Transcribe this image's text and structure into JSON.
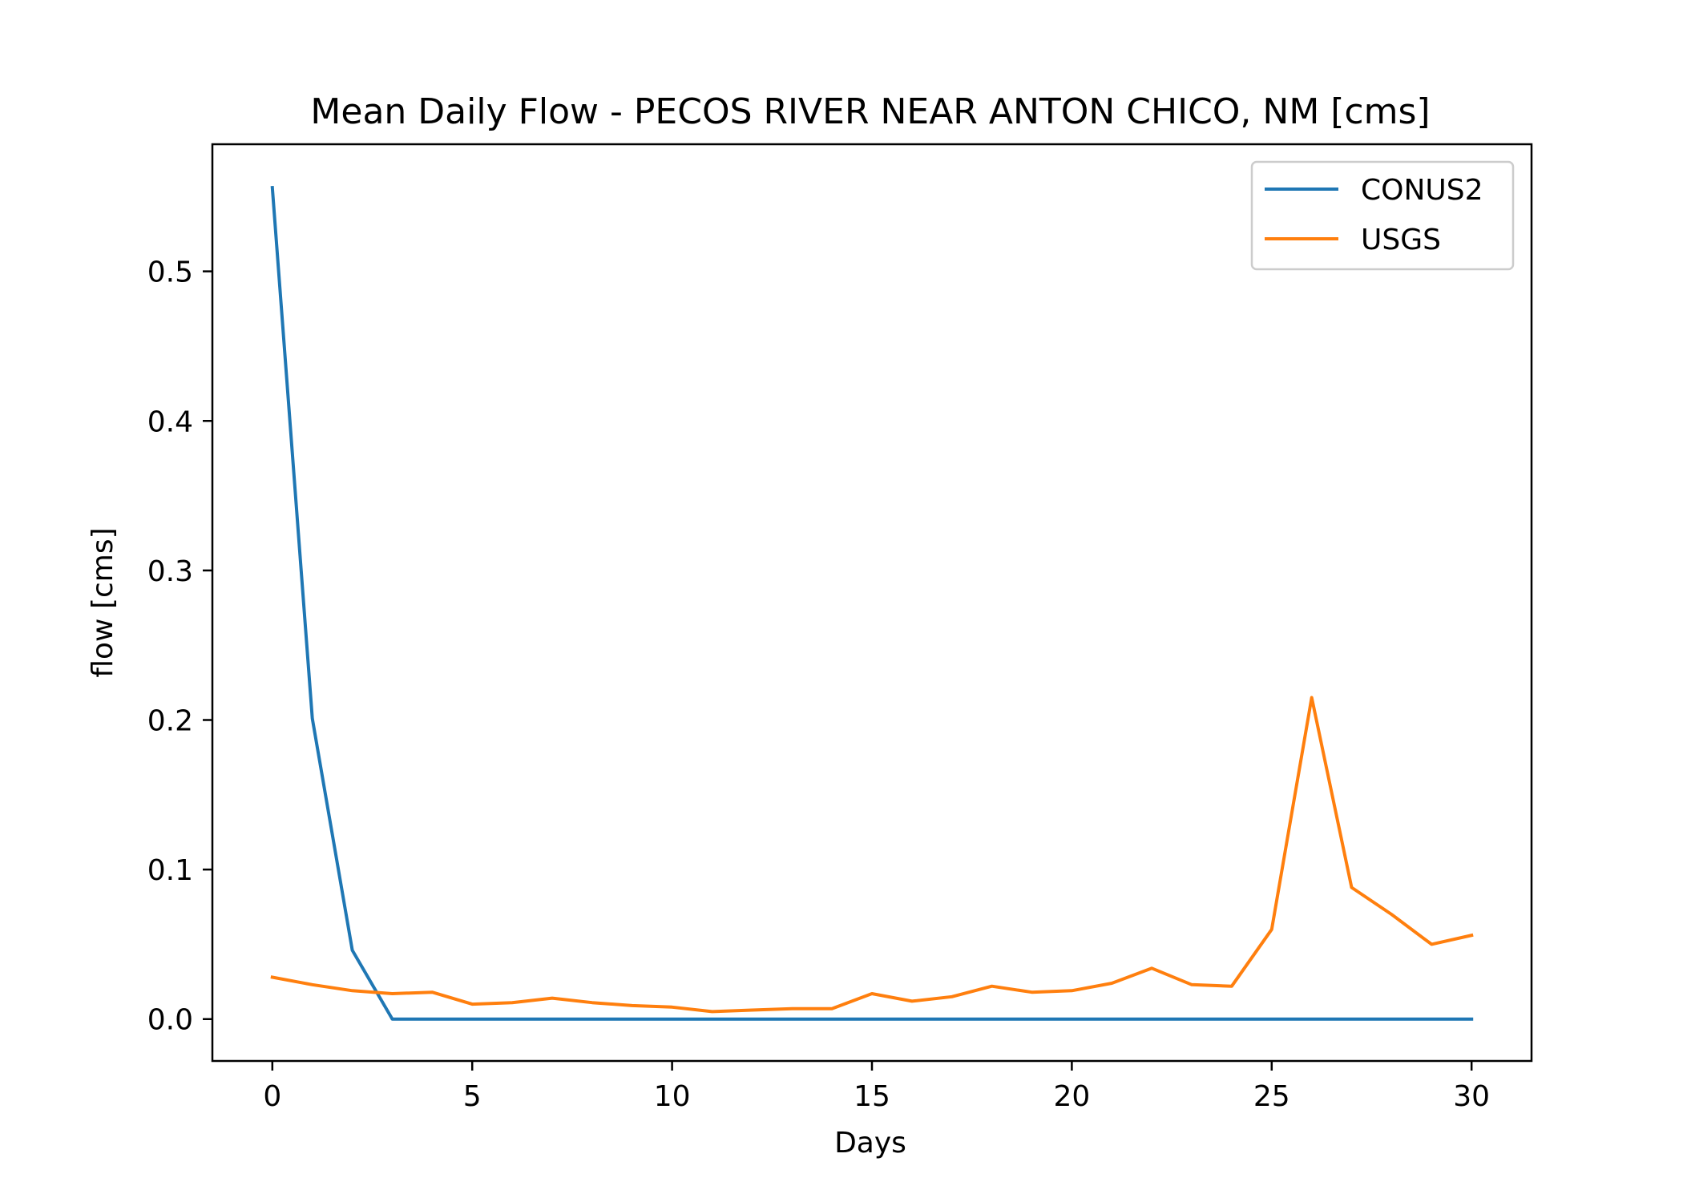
{
  "chart_data": {
    "type": "line",
    "title": "Mean Daily Flow - PECOS RIVER NEAR ANTON CHICO, NM [cms]",
    "xlabel": "Days",
    "ylabel": "flow [cms]",
    "xlim": [
      -1.5,
      31.5
    ],
    "ylim": [
      -0.028,
      0.585
    ],
    "xticks": [
      0,
      5,
      10,
      15,
      20,
      25,
      30
    ],
    "xtick_labels": [
      "0",
      "5",
      "10",
      "15",
      "20",
      "25",
      "30"
    ],
    "yticks": [
      0.0,
      0.1,
      0.2,
      0.3,
      0.4,
      0.5
    ],
    "ytick_labels": [
      "0.0",
      "0.1",
      "0.2",
      "0.3",
      "0.4",
      "0.5"
    ],
    "grid": false,
    "legend": "top-right",
    "x": [
      0,
      1,
      2,
      3,
      4,
      5,
      6,
      7,
      8,
      9,
      10,
      11,
      12,
      13,
      14,
      15,
      16,
      17,
      18,
      19,
      20,
      21,
      22,
      23,
      24,
      25,
      26,
      27,
      28,
      29,
      30
    ],
    "series": [
      {
        "name": "CONUS2",
        "color": "#1f77b4",
        "values": [
          0.556,
          0.201,
          0.046,
          0.0,
          0.0,
          0.0,
          0.0,
          0.0,
          0.0,
          0.0,
          0.0,
          0.0,
          0.0,
          0.0,
          0.0,
          0.0,
          0.0,
          0.0,
          0.0,
          0.0,
          0.0,
          0.0,
          0.0,
          0.0,
          0.0,
          0.0,
          0.0,
          0.0,
          0.0,
          0.0,
          0.0
        ]
      },
      {
        "name": "USGS",
        "color": "#ff7f0e",
        "values": [
          0.028,
          0.023,
          0.019,
          0.017,
          0.018,
          0.01,
          0.011,
          0.014,
          0.011,
          0.009,
          0.008,
          0.005,
          0.006,
          0.007,
          0.007,
          0.017,
          0.012,
          0.015,
          0.022,
          0.018,
          0.019,
          0.024,
          0.034,
          0.023,
          0.022,
          0.06,
          0.215,
          0.088,
          0.07,
          0.05,
          0.056
        ]
      }
    ]
  }
}
